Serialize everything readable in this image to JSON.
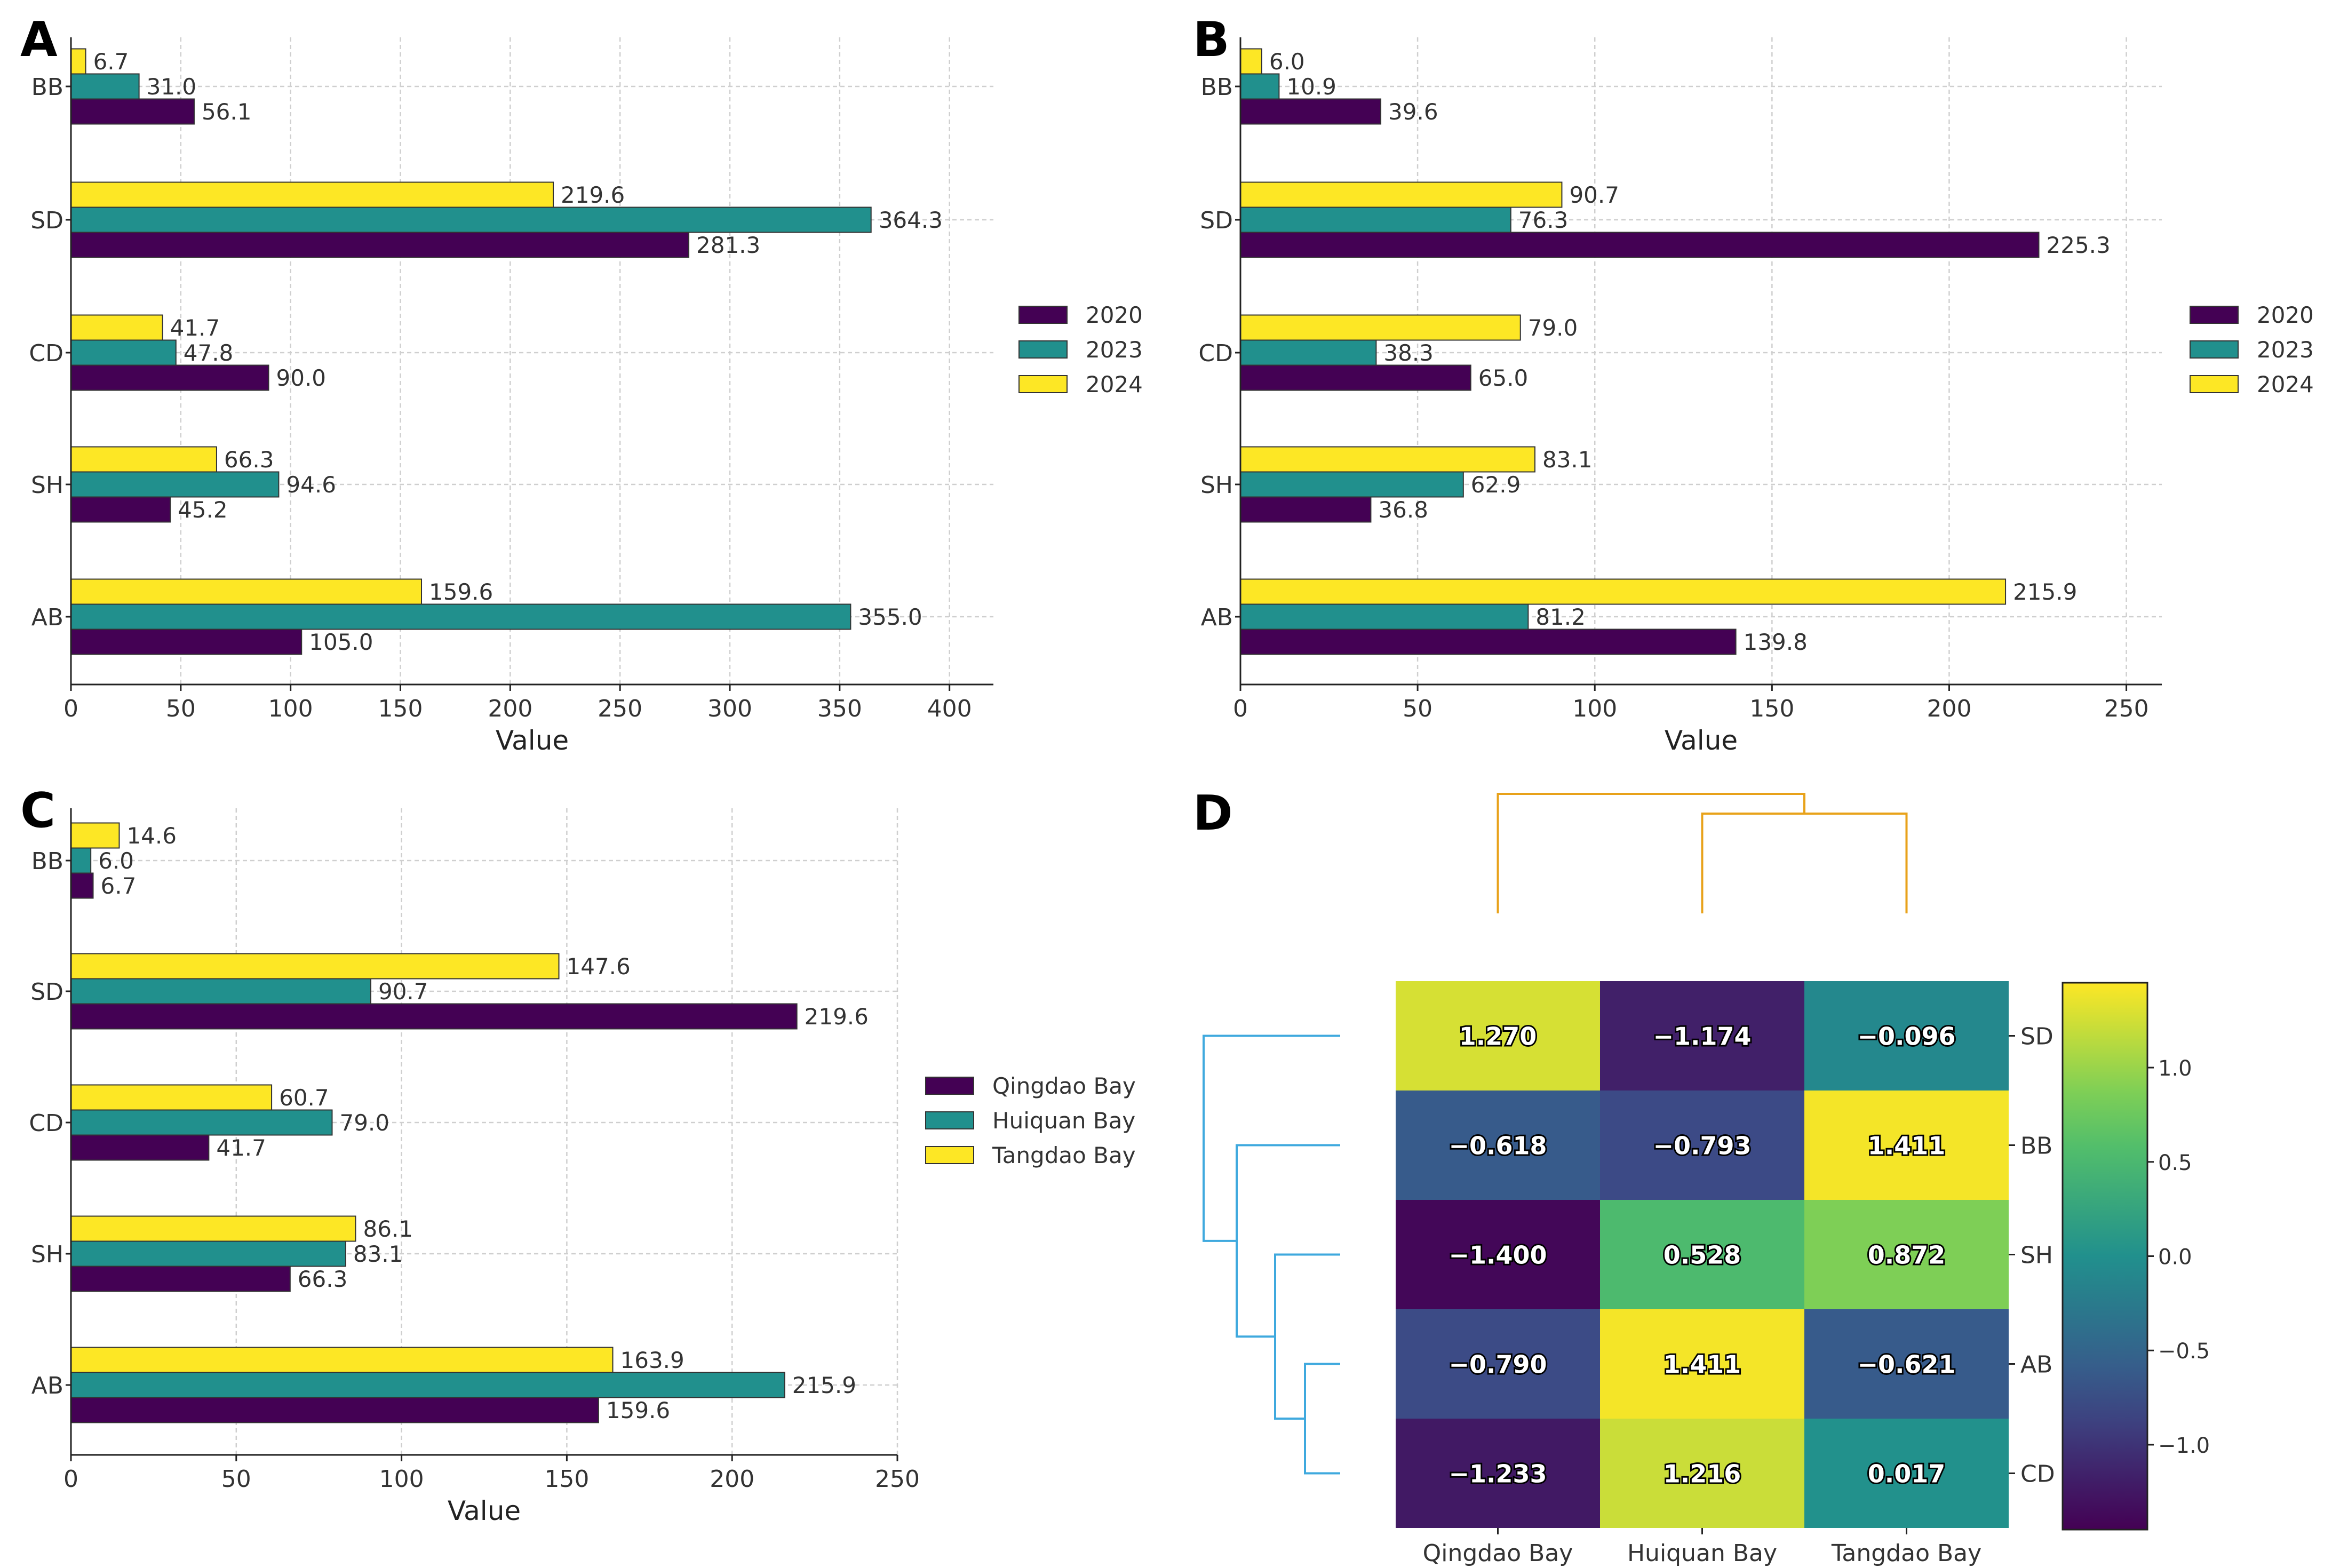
{
  "colors": {
    "purple": "#440154",
    "teal": "#21908d",
    "yellow": "#fde725",
    "grid": "#cfcfcf",
    "dendrogram_orange": "#e8a21a",
    "dendrogram_blue": "#3fa9de",
    "axis": "#222222"
  },
  "chart_data": [
    {
      "panel": "A",
      "type": "bar",
      "orientation": "horizontal",
      "categories": [
        "BB",
        "SD",
        "CD",
        "SH",
        "AB"
      ],
      "series": [
        {
          "name": "2020",
          "color": "#440154",
          "values": [
            56.1,
            281.3,
            90.0,
            45.2,
            105.0
          ],
          "labels": [
            "56.1",
            "281.3",
            "90.0",
            "45.2",
            "105.0"
          ]
        },
        {
          "name": "2023",
          "color": "#21908d",
          "values": [
            31.0,
            364.3,
            47.8,
            94.6,
            355.0
          ],
          "labels": [
            "31.0",
            "364.3",
            "47.8",
            "94.6",
            "355.0"
          ]
        },
        {
          "name": "2024",
          "color": "#fde725",
          "values": [
            6.7,
            219.6,
            41.7,
            66.3,
            159.6
          ],
          "labels": [
            "6.7",
            "219.6",
            "41.7",
            "66.3",
            "159.6"
          ]
        }
      ],
      "xlim": [
        0,
        420
      ],
      "xticks": [
        0,
        50,
        100,
        150,
        200,
        250,
        300,
        350,
        400
      ],
      "xlabel": "Value",
      "grid": true,
      "legend": "right"
    },
    {
      "panel": "B",
      "type": "bar",
      "orientation": "horizontal",
      "categories": [
        "BB",
        "SD",
        "CD",
        "SH",
        "AB"
      ],
      "series": [
        {
          "name": "2020",
          "color": "#440154",
          "values": [
            39.6,
            225.3,
            65.0,
            36.8,
            139.8
          ],
          "labels": [
            "39.6",
            "225.3",
            "65.0",
            "36.8",
            "139.8"
          ]
        },
        {
          "name": "2023",
          "color": "#21908d",
          "values": [
            10.9,
            76.3,
            38.3,
            62.9,
            81.2
          ],
          "labels": [
            "10.9",
            "76.3",
            "38.3",
            "62.9",
            "81.2"
          ]
        },
        {
          "name": "2024",
          "color": "#fde725",
          "values": [
            6.0,
            90.7,
            79.0,
            83.1,
            215.9
          ],
          "labels": [
            "6.0",
            "90.7",
            "79.0",
            "83.1",
            "215.9"
          ]
        }
      ],
      "xlim": [
        0,
        260
      ],
      "xticks": [
        0,
        50,
        100,
        150,
        200,
        250
      ],
      "xlabel": "Value",
      "grid": true,
      "legend": "right"
    },
    {
      "panel": "C",
      "type": "bar",
      "orientation": "horizontal",
      "categories": [
        "BB",
        "SD",
        "CD",
        "SH",
        "AB"
      ],
      "series": [
        {
          "name": "Qingdao Bay",
          "color": "#440154",
          "values": [
            6.7,
            219.6,
            41.7,
            66.3,
            159.6
          ],
          "labels": [
            "6.7",
            "219.6",
            "41.7",
            "66.3",
            "159.6"
          ]
        },
        {
          "name": "Huiquan Bay",
          "color": "#21908d",
          "values": [
            6.0,
            90.7,
            79.0,
            83.1,
            215.9
          ],
          "labels": [
            "6.0",
            "90.7",
            "79.0",
            "83.1",
            "215.9"
          ]
        },
        {
          "name": "Tangdao Bay",
          "color": "#fde725",
          "values": [
            14.6,
            147.6,
            60.7,
            86.1,
            163.9
          ],
          "labels": [
            "14.6",
            "147.6",
            "60.7",
            "86.1",
            "163.9"
          ]
        }
      ],
      "xlim": [
        0,
        250
      ],
      "xticks": [
        0,
        50,
        100,
        150,
        200,
        250
      ],
      "xlabel": "Value",
      "grid": true,
      "legend": "right"
    },
    {
      "panel": "D",
      "type": "heatmap",
      "rows": [
        "SD",
        "BB",
        "SH",
        "AB",
        "CD"
      ],
      "columns": [
        "Qingdao Bay",
        "Huiquan Bay",
        "Tangdao Bay"
      ],
      "values": [
        [
          1.27,
          -1.174,
          -0.096
        ],
        [
          -0.618,
          -0.793,
          1.411
        ],
        [
          -1.4,
          0.528,
          0.872
        ],
        [
          -0.79,
          1.411,
          -0.621
        ],
        [
          -1.233,
          1.216,
          0.017
        ]
      ],
      "labels": [
        [
          "1.270",
          "−1.174",
          "−0.096"
        ],
        [
          "−0.618",
          "−0.793",
          "1.411"
        ],
        [
          "−1.400",
          "0.528",
          "0.872"
        ],
        [
          "−0.790",
          "1.411",
          "−0.621"
        ],
        [
          "−1.233",
          "1.216",
          "0.017"
        ]
      ],
      "colorbar": {
        "range": [
          -1.45,
          1.45
        ],
        "ticks": [
          1.0,
          0.5,
          0.0,
          -0.5,
          -1.0
        ],
        "tick_labels": [
          "1.0",
          "0.5",
          "0.0",
          "−0.5",
          "−1.0"
        ],
        "colormap": "viridis"
      },
      "column_dendrogram": "Huiquan Bay and Tangdao Bay join first, then Qingdao Bay",
      "row_dendrogram": "AB and CD join first, then SH, then BB, then SD"
    }
  ]
}
